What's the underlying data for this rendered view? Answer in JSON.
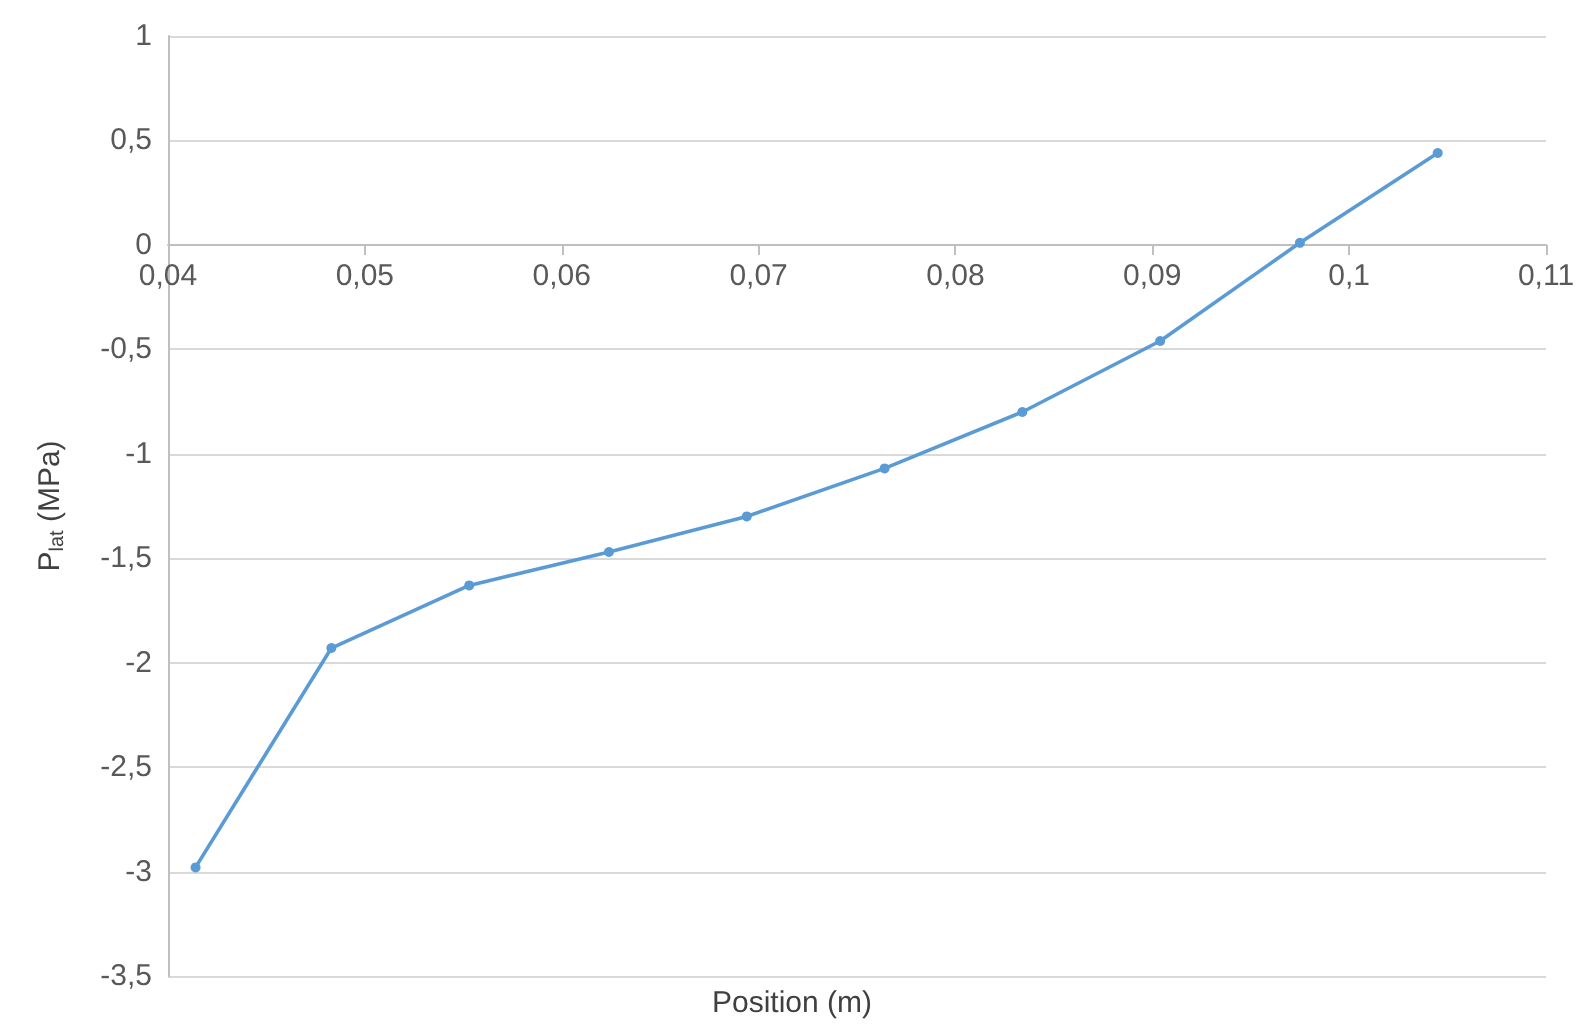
{
  "chart_data": {
    "type": "line",
    "xlabel": "Position (m)",
    "ylabel": "P$_{lat}$ (MPa)",
    "x": [
      0.0414,
      0.0483,
      0.0553,
      0.0624,
      0.0694,
      0.0764,
      0.0834,
      0.0904,
      0.0975,
      0.1045
    ],
    "series": [
      {
        "color": "#5b9bd5",
        "values": [
          -2.98,
          -1.93,
          -1.63,
          -1.47,
          -1.3,
          -1.07,
          -0.8,
          -0.46,
          0.01,
          0.44
        ]
      }
    ],
    "xlim": [
      0.04,
      0.11
    ],
    "xticks": [
      {
        "value": 0.04,
        "label": "0,04"
      },
      {
        "value": 0.05,
        "label": "0,05"
      },
      {
        "value": 0.06,
        "label": "0,06"
      },
      {
        "value": 0.07,
        "label": "0,07"
      },
      {
        "value": 0.08,
        "label": "0,08"
      },
      {
        "value": 0.09,
        "label": "0,09"
      },
      {
        "value": 0.1,
        "label": "0,1"
      },
      {
        "value": 0.11,
        "label": "0,11"
      }
    ],
    "ylim": [
      -3.5,
      1
    ],
    "yticks": [
      {
        "value": -3.5,
        "label": "-3,5"
      },
      -3,
      {
        "value": -2.5,
        "label": "-2,5"
      },
      -2,
      {
        "value": -1.5,
        "label": "-1,5"
      },
      -1,
      {
        "value": -0.5,
        "label": "-0,5"
      },
      0,
      {
        "value": 0.5,
        "label": "0,5"
      },
      1
    ],
    "grid": "y",
    "marker": "circle",
    "line_style": "solid"
  }
}
